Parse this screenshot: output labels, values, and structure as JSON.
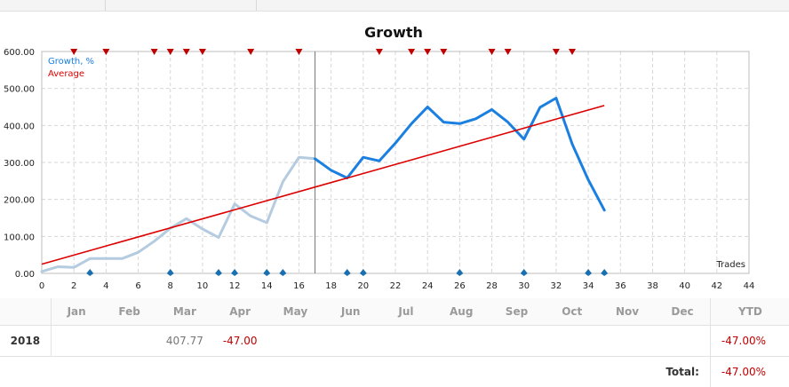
{
  "chart_data": {
    "type": "line",
    "title": "Growth",
    "xlabel": "Trades",
    "x_ticks": [
      0,
      2,
      4,
      6,
      8,
      10,
      12,
      14,
      16,
      18,
      20,
      22,
      24,
      26,
      28,
      30,
      32,
      34,
      36,
      38,
      40,
      42,
      44
    ],
    "y_ticks": [
      "0.00",
      "100.00",
      "200.00",
      "300.00",
      "400.00",
      "500.00",
      "600.00"
    ],
    "xlim": [
      0,
      44
    ],
    "ylim": [
      0,
      600
    ],
    "month_labels": [
      "Jan",
      "Feb",
      "Mar",
      "Apr",
      "May",
      "Jun",
      "Jul",
      "Aug",
      "Sep",
      "Oct",
      "Nov"
    ],
    "series": [
      {
        "name": "Growth, %",
        "color": "#1a7fe0",
        "history_color": "#b4cbe0",
        "history_until_x": 17,
        "x": [
          0,
          1,
          2,
          3,
          4,
          5,
          6,
          7,
          8,
          9,
          10,
          11,
          12,
          13,
          14,
          15,
          16,
          17,
          18,
          19,
          20,
          21,
          22,
          23,
          24,
          25,
          26,
          27,
          28,
          29,
          30,
          31,
          32,
          33,
          34,
          35
        ],
        "y": [
          5,
          18,
          16,
          40,
          40,
          40,
          57,
          87,
          122,
          148,
          120,
          97,
          188,
          155,
          137,
          248,
          314,
          310,
          279,
          258,
          314,
          304,
          352,
          405,
          450,
          409,
          405,
          418,
          443,
          409,
          363,
          449,
          474,
          350,
          253,
          171
        ]
      },
      {
        "name": "Average",
        "color": "#dd0000",
        "x": [
          0,
          35
        ],
        "y": [
          25,
          454
        ]
      }
    ],
    "divider_x": 17,
    "red_markers_x": [
      2,
      4,
      7,
      8,
      9,
      10,
      13,
      16,
      21,
      23,
      24,
      25,
      28,
      29,
      32,
      33
    ],
    "blue_markers_x": [
      3,
      8,
      11,
      12,
      14,
      15,
      19,
      20,
      26,
      30,
      34,
      35
    ],
    "grid": true,
    "legend": "top-left"
  },
  "table": {
    "headers": [
      "Jan",
      "Feb",
      "Mar",
      "Apr",
      "May",
      "Jun",
      "Jul",
      "Aug",
      "Sep",
      "Oct",
      "Nov",
      "Dec",
      "YTD"
    ],
    "rows": [
      {
        "year": "2018",
        "values": [
          "",
          "",
          "407.77",
          "-47.00",
          "",
          "",
          "",
          "",
          "",
          "",
          "",
          "",
          ""
        ],
        "ytd": "-47.00%"
      }
    ],
    "total_label": "Total:",
    "total_value": "-47.00%"
  }
}
